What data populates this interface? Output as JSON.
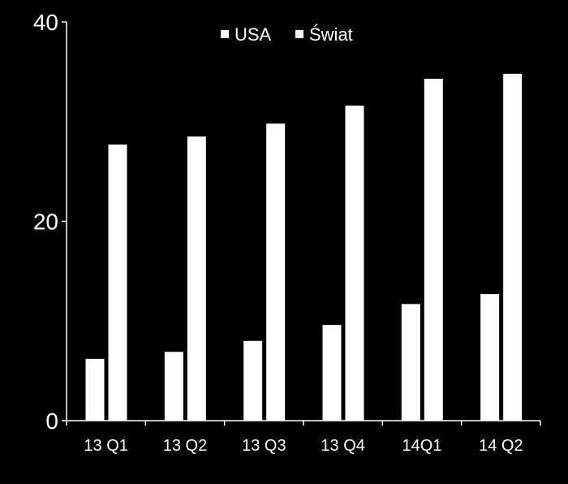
{
  "chart_data": {
    "type": "bar",
    "categories": [
      "13 Q1",
      "13 Q2",
      "13 Q3",
      "13 Q4",
      "14Q1",
      "14 Q2"
    ],
    "series": [
      {
        "name": "USA",
        "values": [
          6.2,
          6.9,
          8.0,
          9.6,
          11.7,
          12.7
        ]
      },
      {
        "name": "Świat",
        "values": [
          27.7,
          28.5,
          29.8,
          31.6,
          34.3,
          34.8
        ]
      }
    ],
    "title": "",
    "xlabel": "",
    "ylabel": "",
    "ylim": [
      0,
      40
    ],
    "yticks": [
      0,
      20,
      40
    ],
    "grid": false,
    "legend_position": "top-center",
    "colors": {
      "background": "#000000",
      "bars": "#ffffff",
      "axes": "#ffffff",
      "text": "#ffffff"
    }
  }
}
